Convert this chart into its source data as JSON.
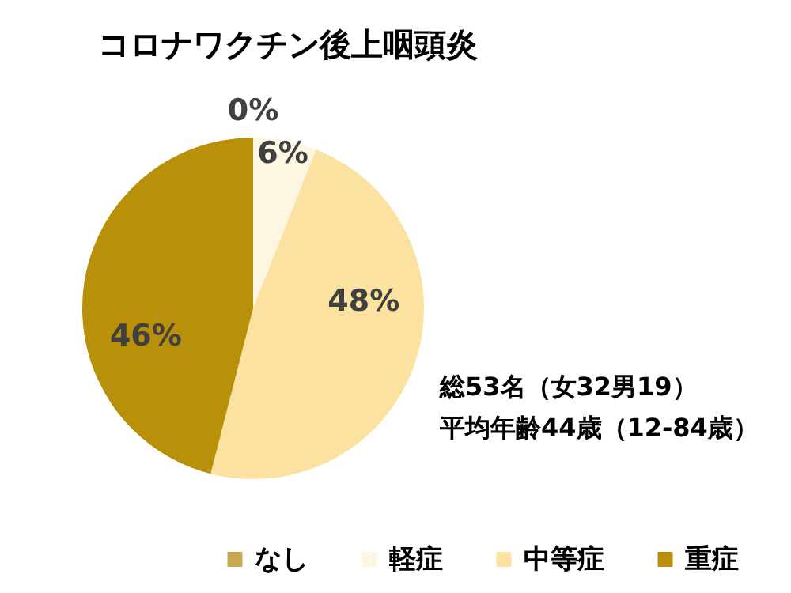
{
  "chart_data": {
    "type": "pie",
    "title": "コロナワクチン後上咽頭炎",
    "categories": [
      "なし",
      "軽症",
      "中等症",
      "重症"
    ],
    "values": [
      0,
      6,
      48,
      46
    ],
    "colors": [
      "#c8a951",
      "#fdf6e3",
      "#fbe2a0",
      "#b8900a"
    ],
    "value_labels": [
      "0%",
      "6%",
      "48%",
      "46%"
    ],
    "legend": "bottom",
    "annotations": [
      "総53名（女32男19）",
      "平均年齢44歳（12-84歳）"
    ]
  }
}
